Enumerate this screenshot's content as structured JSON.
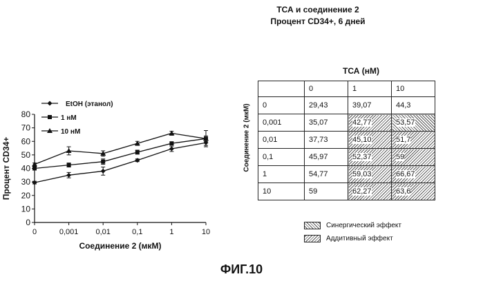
{
  "figure": {
    "title_line1": "ТСА и соединение 2",
    "title_line2": "Процент  CD34+, 6 дней",
    "caption": "ФИГ.10"
  },
  "chart_data": {
    "type": "line",
    "categories": [
      "0",
      "0,001",
      "0,01",
      "0,1",
      "1",
      "10"
    ],
    "xlabel": "Соединение 2 (мкМ)",
    "ylabel": "Процент CD34+",
    "ylim": [
      0,
      80
    ],
    "yticks": [
      "0",
      "10",
      "20",
      "30",
      "40",
      "50",
      "60",
      "70",
      "80"
    ],
    "legend_placement": "top-left",
    "grid": false,
    "series": [
      {
        "name": "EtOH (этанол)",
        "marker": "diamond",
        "values": [
          29.5,
          35,
          38,
          46,
          54.5,
          59
        ],
        "errors": [
          1,
          2,
          3,
          1,
          2,
          2
        ]
      },
      {
        "name": "1 нМ",
        "marker": "square",
        "values": [
          40,
          42.5,
          45,
          52,
          58.5,
          62
        ],
        "errors": [
          1,
          1.5,
          2,
          1.5,
          1,
          2
        ]
      },
      {
        "name": "10 нМ",
        "marker": "triangle",
        "values": [
          43,
          53,
          51,
          58.5,
          66,
          62
        ],
        "errors": [
          1,
          3,
          2,
          1.5,
          1.5,
          6
        ]
      }
    ]
  },
  "table": {
    "col_header": "ТСА (нМ)",
    "row_axis_label": "Соединение 2 (мкМ)",
    "columns": [
      "0",
      "1",
      "10"
    ],
    "rows": [
      {
        "label": "0",
        "values": [
          "29,43",
          "39,07",
          "44,3"
        ],
        "shade": [
          "",
          "",
          ""
        ]
      },
      {
        "label": "0,001",
        "values": [
          "35,07",
          "42,77",
          "53,57"
        ],
        "shade": [
          "",
          "add",
          "syn"
        ]
      },
      {
        "label": "0,01",
        "values": [
          "37,73",
          "45,10",
          "51,7"
        ],
        "shade": [
          "",
          "add",
          "add"
        ]
      },
      {
        "label": "0,1",
        "values": [
          "45,97",
          "52,37",
          "59"
        ],
        "shade": [
          "",
          "add",
          "add"
        ]
      },
      {
        "label": "1",
        "values": [
          "54,77",
          "59,03",
          "66,67"
        ],
        "shade": [
          "",
          "add",
          "add"
        ]
      },
      {
        "label": "10",
        "values": [
          "59",
          "62,27",
          "63,6"
        ],
        "shade": [
          "",
          "add",
          "add"
        ]
      }
    ],
    "legend": [
      {
        "key": "syn",
        "label": "Синергический эффект"
      },
      {
        "key": "add",
        "label": "Аддитивный эффект"
      }
    ]
  }
}
